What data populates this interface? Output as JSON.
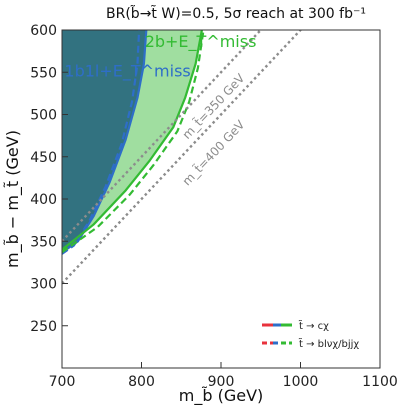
{
  "chart_data": {
    "type": "area",
    "title": "BR(b̃→t̃ W)=0.5, 5σ reach at 300 fb⁻¹",
    "xlabel": "m_b̃ (GeV)",
    "ylabel": "m_b̃ − m_t̃ (GeV)",
    "xlim": [
      700,
      1100
    ],
    "ylim": [
      200,
      600
    ],
    "xticks": [
      "700",
      "800",
      "900",
      "1000",
      "1100"
    ],
    "yticks": [
      "250",
      "300",
      "350",
      "400",
      "450",
      "500",
      "550",
      "600"
    ],
    "regions": [
      {
        "name": "1b1l+E_T^miss",
        "color": "#2e6ec8",
        "fill": "#1f5f7a",
        "solid": [
          [
            705,
            340
          ],
          [
            720,
            350
          ],
          [
            740,
            380
          ],
          [
            760,
            420
          ],
          [
            780,
            470
          ],
          [
            795,
            520
          ],
          [
            803,
            560
          ],
          [
            806,
            600
          ]
        ],
        "dashed": [
          [
            700,
            335
          ],
          [
            715,
            345
          ],
          [
            735,
            375
          ],
          [
            755,
            415
          ],
          [
            775,
            465
          ],
          [
            788,
            515
          ],
          [
            795,
            560
          ],
          [
            797,
            600
          ]
        ]
      },
      {
        "name": "2b+E_T^miss",
        "color": "#33bb33",
        "fill": "#8fd88f",
        "solid": [
          [
            700,
            340
          ],
          [
            740,
            370
          ],
          [
            780,
            410
          ],
          [
            810,
            445
          ],
          [
            840,
            485
          ],
          [
            855,
            520
          ],
          [
            868,
            560
          ],
          [
            876,
            600
          ]
        ],
        "dashed": [
          [
            700,
            337
          ],
          [
            745,
            367
          ],
          [
            785,
            405
          ],
          [
            815,
            440
          ],
          [
            845,
            480
          ],
          [
            860,
            515
          ],
          [
            871,
            555
          ],
          [
            878,
            600
          ]
        ]
      }
    ],
    "reference_lines": [
      {
        "label": "m_t̃=350 GeV",
        "m_tstop": 350
      },
      {
        "label": "m_t̃=400 GeV",
        "m_tstop": 400
      }
    ],
    "legend": {
      "placement": "bottom-right",
      "entries": [
        {
          "label": "t̃ → cχ",
          "style": "solid"
        },
        {
          "label": "t̃ → blνχ/bjjχ",
          "style": "dashed"
        }
      ]
    },
    "grid": false
  },
  "colors": {
    "blue": "#2e6ec8",
    "green": "#33bb33",
    "red": "#e8323c",
    "reference": "#8c8c8c"
  }
}
